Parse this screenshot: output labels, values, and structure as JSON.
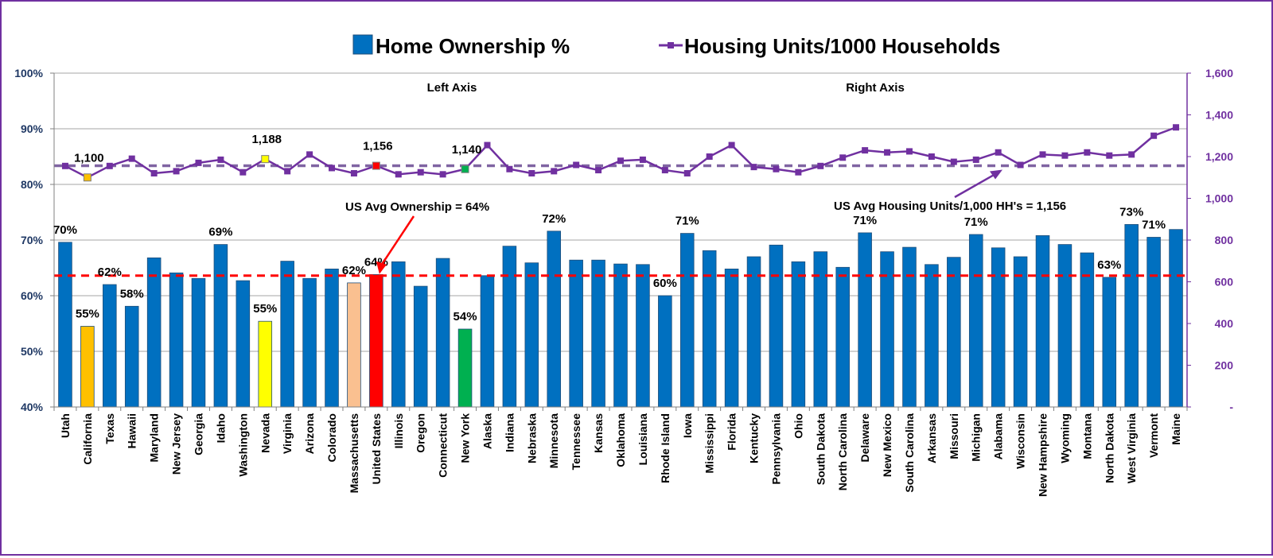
{
  "chart_data": {
    "type": "bar",
    "legend_position": "top",
    "grid": true,
    "categories": [
      "Utah",
      "California",
      "Texas",
      "Hawaii",
      "Maryland",
      "New Jersey",
      "Georgia",
      "Idaho",
      "Washington",
      "Nevada",
      "Virginia",
      "Arizona",
      "Colorado",
      "Massachusetts",
      "United States",
      "Illinois",
      "Oregon",
      "Connecticut",
      "New York",
      "Alaska",
      "Indiana",
      "Nebraska",
      "Minnesota",
      "Tennessee",
      "Kansas",
      "Oklahoma",
      "Louisiana",
      "Rhode Island",
      "Iowa",
      "Mississippi",
      "Florida",
      "Kentucky",
      "Pennsylvania",
      "Ohio",
      "South Dakota",
      "North Carolina",
      "Delaware",
      "New Mexico",
      "South Carolina",
      "Arkansas",
      "Missouri",
      "Michigan",
      "Alabama",
      "Wisconsin",
      "New Hampshire",
      "Wyoming",
      "Montana",
      "North Dakota",
      "West Virginia",
      "Vermont",
      "Maine"
    ],
    "series": [
      {
        "name": "Home Ownership %",
        "type": "bar",
        "axis": "left",
        "color": "#0070c0",
        "values": [
          69.6,
          54.5,
          62.0,
          58.1,
          66.8,
          64.1,
          63.1,
          69.2,
          62.7,
          55.4,
          66.2,
          63.1,
          64.8,
          62.3,
          63.8,
          66.1,
          61.7,
          66.7,
          54.0,
          63.6,
          68.9,
          65.9,
          71.6,
          66.4,
          66.4,
          65.7,
          65.6,
          60.0,
          71.2,
          68.1,
          64.8,
          67.0,
          69.1,
          66.1,
          67.9,
          65.1,
          71.3,
          67.9,
          68.7,
          65.6,
          66.9,
          71.0,
          68.6,
          67.0,
          70.8,
          69.2,
          67.7,
          63.3,
          72.8,
          70.5,
          71.9
        ],
        "highlights": [
          {
            "category": "California",
            "color": "#ffc000"
          },
          {
            "category": "Nevada",
            "color": "#ffff00"
          },
          {
            "category": "Massachusetts",
            "color": "#fac090"
          },
          {
            "category": "United States",
            "color": "#ff0000"
          },
          {
            "category": "New York",
            "color": "#00b050"
          }
        ]
      },
      {
        "name": "Housing Units/1000 Households",
        "type": "line",
        "axis": "right",
        "color": "#7030a0",
        "values": [
          1155,
          1100,
          1155,
          1190,
          1120,
          1130,
          1170,
          1185,
          1125,
          1188,
          1130,
          1210,
          1145,
          1120,
          1156,
          1115,
          1125,
          1115,
          1140,
          1255,
          1140,
          1120,
          1130,
          1160,
          1135,
          1180,
          1185,
          1135,
          1120,
          1200,
          1255,
          1150,
          1140,
          1125,
          1155,
          1195,
          1230,
          1220,
          1225,
          1200,
          1175,
          1185,
          1220,
          1160,
          1210,
          1205,
          1220,
          1205,
          1210,
          1300,
          1340
        ],
        "highlight_points": [
          {
            "category": "California",
            "color": "#ffc000"
          },
          {
            "category": "Nevada",
            "color": "#ffff00"
          },
          {
            "category": "United States",
            "color": "#ff0000"
          },
          {
            "category": "New York",
            "color": "#00b050"
          }
        ]
      }
    ],
    "left_axis": {
      "ylim": [
        40,
        100
      ],
      "ticks": [
        40,
        50,
        60,
        70,
        80,
        90,
        100
      ],
      "tick_labels": [
        "40%",
        "50%",
        "60%",
        "70%",
        "80%",
        "90%",
        "100%"
      ]
    },
    "right_axis": {
      "ylim": [
        0,
        1600
      ],
      "ticks": [
        0,
        200,
        400,
        600,
        800,
        1000,
        1200,
        1400,
        1600
      ],
      "tick_labels": [
        "-",
        "200",
        "400",
        "600",
        "800",
        "1,000",
        "1,200",
        "1,400",
        "1,600"
      ]
    },
    "bar_labels": [
      {
        "category": "Utah",
        "text": "70%"
      },
      {
        "category": "California",
        "text": "55%"
      },
      {
        "category": "Texas",
        "text": "62%"
      },
      {
        "category": "Hawaii",
        "text": "58%"
      },
      {
        "category": "Idaho",
        "text": "69%"
      },
      {
        "category": "Nevada",
        "text": "55%"
      },
      {
        "category": "Massachusetts",
        "text": "62%"
      },
      {
        "category": "United States",
        "text": "64%"
      },
      {
        "category": "New York",
        "text": "54%"
      },
      {
        "category": "Minnesota",
        "text": "72%"
      },
      {
        "category": "Rhode Island",
        "text": "60%"
      },
      {
        "category": "Iowa",
        "text": "71%"
      },
      {
        "category": "Delaware",
        "text": "71%"
      },
      {
        "category": "Michigan",
        "text": "71%"
      },
      {
        "category": "North Dakota",
        "text": "63%"
      },
      {
        "category": "West Virginia",
        "text": "73%"
      },
      {
        "category": "Vermont",
        "text": "71%"
      }
    ],
    "point_labels": [
      {
        "category": "California",
        "text": "1,100"
      },
      {
        "category": "Nevada",
        "text": "1,188"
      },
      {
        "category": "United States",
        "text": "1,156"
      },
      {
        "category": "New York",
        "text": "1,140"
      }
    ],
    "reference_lines": [
      {
        "axis": "left",
        "value": 63.6,
        "color": "#ff0000",
        "style": "dashed"
      },
      {
        "axis": "right",
        "value": 1156,
        "color": "#8064a2",
        "style": "dashed"
      }
    ],
    "annotations": {
      "left_axis_note": "Left Axis",
      "right_axis_note": "Right Axis",
      "us_avg_ownership": "US Avg Ownership = 64%",
      "us_avg_housing": "US Avg Housing Units/1,000 HH's = 1,156"
    }
  }
}
